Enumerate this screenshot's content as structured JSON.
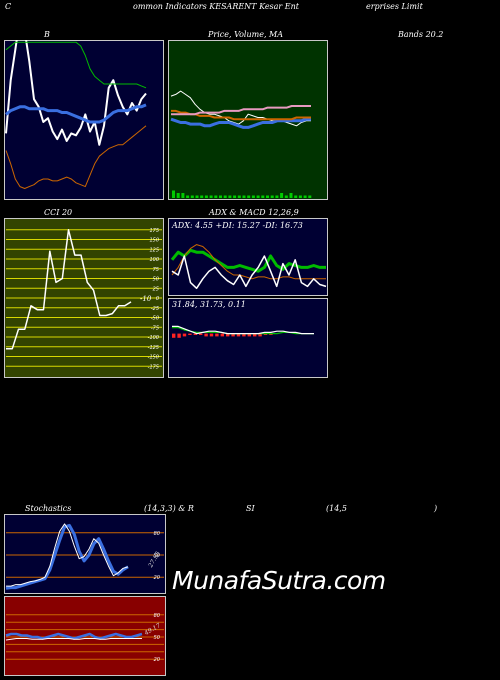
{
  "header": {
    "c_letter": "C",
    "title": "ommon  Indicators KESARENT Kesar Ent",
    "title_tail": "erprises Limit"
  },
  "watermark": "MunafaSutra.com",
  "colors": {
    "bb_bg": "#000033",
    "price_bg": "#003300",
    "cci_bg": "#334400",
    "adx_bg": "#000033",
    "stoch_bg": "#000033",
    "rsi_bg": "#880000",
    "white": "#ffffff",
    "blue": "#3a6fe0",
    "green": "#00bb00",
    "orange": "#cc6600"
  },
  "chart_data": [
    {
      "id": "bollinger",
      "type": "line",
      "label_left": "B",
      "label_right": "Bands 20.2",
      "series": [
        {
          "color": "white",
          "values": [
            34,
            62,
            78,
            95,
            88,
            72,
            52,
            48,
            40,
            42,
            35,
            31,
            36,
            30,
            34,
            33,
            37,
            44,
            35,
            40,
            28,
            38,
            58,
            62,
            54,
            48,
            44,
            50,
            46,
            52,
            55
          ]
        },
        {
          "color": "green",
          "values": [
            78,
            80,
            82,
            82,
            82,
            82,
            82,
            82,
            82,
            82,
            82,
            82,
            82,
            82,
            82,
            82,
            80,
            75,
            68,
            64,
            62,
            60,
            60,
            60,
            60,
            60,
            60,
            60,
            60,
            59,
            58
          ]
        },
        {
          "color": "blue",
          "values": [
            44,
            46,
            47,
            48,
            48,
            47,
            47,
            47,
            47,
            46,
            46,
            46,
            45,
            45,
            44,
            43,
            42,
            41,
            40,
            40,
            40,
            41,
            43,
            45,
            46,
            46,
            46,
            47,
            48,
            48,
            49
          ]
        },
        {
          "color": "orange",
          "values": [
            25,
            18,
            10,
            6,
            5,
            6,
            7,
            9,
            10,
            10,
            9,
            9,
            10,
            11,
            10,
            8,
            7,
            6,
            12,
            18,
            22,
            24,
            26,
            27,
            28,
            28,
            30,
            32,
            34,
            36,
            38
          ]
        }
      ]
    },
    {
      "id": "price_ma",
      "type": "line",
      "label": "Price,  Volume,  MA",
      "series": [
        {
          "color": "white",
          "values": [
            63,
            64,
            66,
            64,
            62,
            58,
            55,
            53,
            52,
            52,
            51,
            50,
            48,
            47,
            46,
            48,
            52,
            51,
            50,
            50,
            49,
            48,
            48,
            48,
            47,
            46,
            45,
            47,
            48,
            48
          ]
        },
        {
          "color": "blue",
          "values": [
            49,
            48,
            47,
            47,
            46,
            46,
            46,
            45,
            45,
            46,
            47,
            47,
            47,
            46,
            45,
            44,
            44,
            45,
            46,
            47,
            47,
            47,
            48,
            48,
            48,
            48,
            48,
            48,
            49,
            49
          ]
        },
        {
          "color": "orange",
          "values": [
            54,
            54,
            53,
            53,
            52,
            52,
            51,
            51,
            51,
            50,
            50,
            50,
            50,
            49,
            49,
            49,
            49,
            49,
            49,
            49,
            49,
            49,
            49,
            49,
            49,
            49,
            50,
            50,
            50,
            50
          ]
        },
        {
          "color": "pink",
          "values": [
            52,
            52,
            52,
            52,
            52,
            52,
            53,
            53,
            53,
            53,
            53,
            54,
            54,
            54,
            54,
            55,
            55,
            55,
            55,
            55,
            56,
            56,
            56,
            56,
            56,
            57,
            57,
            57,
            57,
            57
          ]
        }
      ],
      "volume": [
        3,
        2,
        2,
        1,
        1,
        1,
        1,
        1,
        1,
        1,
        1,
        1,
        1,
        1,
        1,
        1,
        1,
        1,
        1,
        1,
        1,
        1,
        1,
        2,
        1,
        2,
        1,
        1,
        1,
        1
      ]
    },
    {
      "id": "cci",
      "type": "line",
      "label": "CCI 20",
      "current_label": "-10",
      "ticks": [
        "175",
        "150",
        "125",
        "100",
        "75",
        "50",
        "25",
        "0",
        "-25",
        "-50",
        "-75",
        "-100",
        "-125",
        "-150",
        "-175"
      ],
      "ylim": [
        -200,
        200
      ],
      "values": [
        -130,
        -130,
        -80,
        -80,
        -20,
        -30,
        -30,
        120,
        40,
        50,
        175,
        110,
        110,
        40,
        20,
        -45,
        -45,
        -40,
        -20,
        -20,
        -10
      ]
    },
    {
      "id": "adx",
      "type": "line",
      "label": "ADX  & MACD 12,26,9",
      "readout": "ADX: 4.55  +DI: 15.27  -DI: 16.73",
      "series": [
        {
          "color": "green",
          "values": [
            18,
            22,
            20,
            23,
            22,
            22,
            20,
            18,
            16,
            14,
            14,
            15,
            14,
            13,
            12,
            14,
            20,
            15,
            13,
            16,
            15,
            14,
            14,
            15,
            14,
            14
          ]
        },
        {
          "color": "orange",
          "values": [
            10,
            14,
            20,
            24,
            26,
            25,
            22,
            18,
            15,
            12,
            10,
            10,
            9,
            8,
            9,
            9,
            8,
            8,
            9,
            9,
            8,
            8,
            8,
            8,
            8,
            8
          ]
        },
        {
          "color": "white",
          "values": [
            12,
            10,
            20,
            6,
            3,
            8,
            12,
            14,
            10,
            7,
            5,
            10,
            4,
            10,
            14,
            20,
            12,
            4,
            16,
            10,
            18,
            6,
            4,
            8,
            5,
            4
          ]
        }
      ]
    },
    {
      "id": "macd",
      "type": "line",
      "label": "31.84,  31.73,  0.11",
      "series": [
        {
          "color": "white",
          "values": [
            38,
            38,
            36,
            34,
            32,
            33,
            34,
            34,
            33,
            32,
            32,
            32,
            32,
            32,
            32,
            33,
            33,
            34,
            34,
            33,
            33,
            32,
            32,
            32
          ]
        },
        {
          "color": "green",
          "values": [
            37,
            37,
            35,
            34,
            33,
            33,
            33,
            33,
            33,
            32,
            32,
            32,
            32,
            32,
            32,
            32,
            32,
            32,
            33,
            33,
            32,
            32,
            32,
            32
          ]
        }
      ],
      "hist": [
        -3,
        -3,
        -2,
        -1,
        -1,
        -1,
        -2,
        -2,
        -2,
        -2,
        -2,
        -2,
        -2,
        -2,
        -2,
        -2,
        -2,
        -1,
        -1,
        0,
        0,
        0,
        0,
        0
      ]
    },
    {
      "id": "stochastics",
      "type": "line",
      "label_a": "Stochastics",
      "label_b": "(14,3,3) & R",
      "label_c": "SI",
      "label_d": "(14,5",
      "label_e": ")",
      "current_label": "27.95",
      "ticks": [
        "80",
        "50",
        "20"
      ],
      "ylim": [
        0,
        100
      ],
      "series": [
        {
          "color": "blue",
          "values": [
            5,
            6,
            6,
            8,
            10,
            12,
            14,
            16,
            18,
            30,
            50,
            70,
            88,
            90,
            78,
            55,
            42,
            50,
            65,
            72,
            58,
            42,
            28,
            24,
            30,
            34
          ]
        },
        {
          "color": "white",
          "values": [
            8,
            8,
            10,
            10,
            12,
            14,
            15,
            17,
            20,
            35,
            60,
            82,
            92,
            82,
            62,
            45,
            48,
            58,
            72,
            66,
            50,
            35,
            22,
            26,
            32,
            34
          ]
        },
        {
          "color": "orange",
          "values": [
            60,
            60,
            60,
            60,
            60,
            60,
            60,
            60,
            60,
            60,
            60,
            60,
            60,
            60,
            60,
            60,
            60,
            60,
            60,
            60,
            60,
            60,
            60,
            60,
            60,
            60
          ]
        }
      ]
    },
    {
      "id": "rsi",
      "type": "line",
      "current_label": "49.17",
      "ticks": [
        "80",
        "50",
        "20"
      ],
      "ylim": [
        0,
        100
      ],
      "series": [
        {
          "color": "blue",
          "values": [
            52,
            54,
            54,
            52,
            52,
            50,
            50,
            48,
            50,
            52,
            54,
            52,
            50,
            48,
            50,
            52,
            54,
            50,
            48,
            50,
            52,
            54,
            52,
            50,
            50,
            52,
            54
          ]
        },
        {
          "color": "white",
          "values": [
            46,
            47,
            48,
            48,
            48,
            47,
            47,
            47,
            48,
            48,
            48,
            48,
            48,
            47,
            47,
            48,
            48,
            48,
            47,
            47,
            48,
            48,
            48,
            48,
            48,
            48,
            48
          ]
        }
      ]
    }
  ]
}
